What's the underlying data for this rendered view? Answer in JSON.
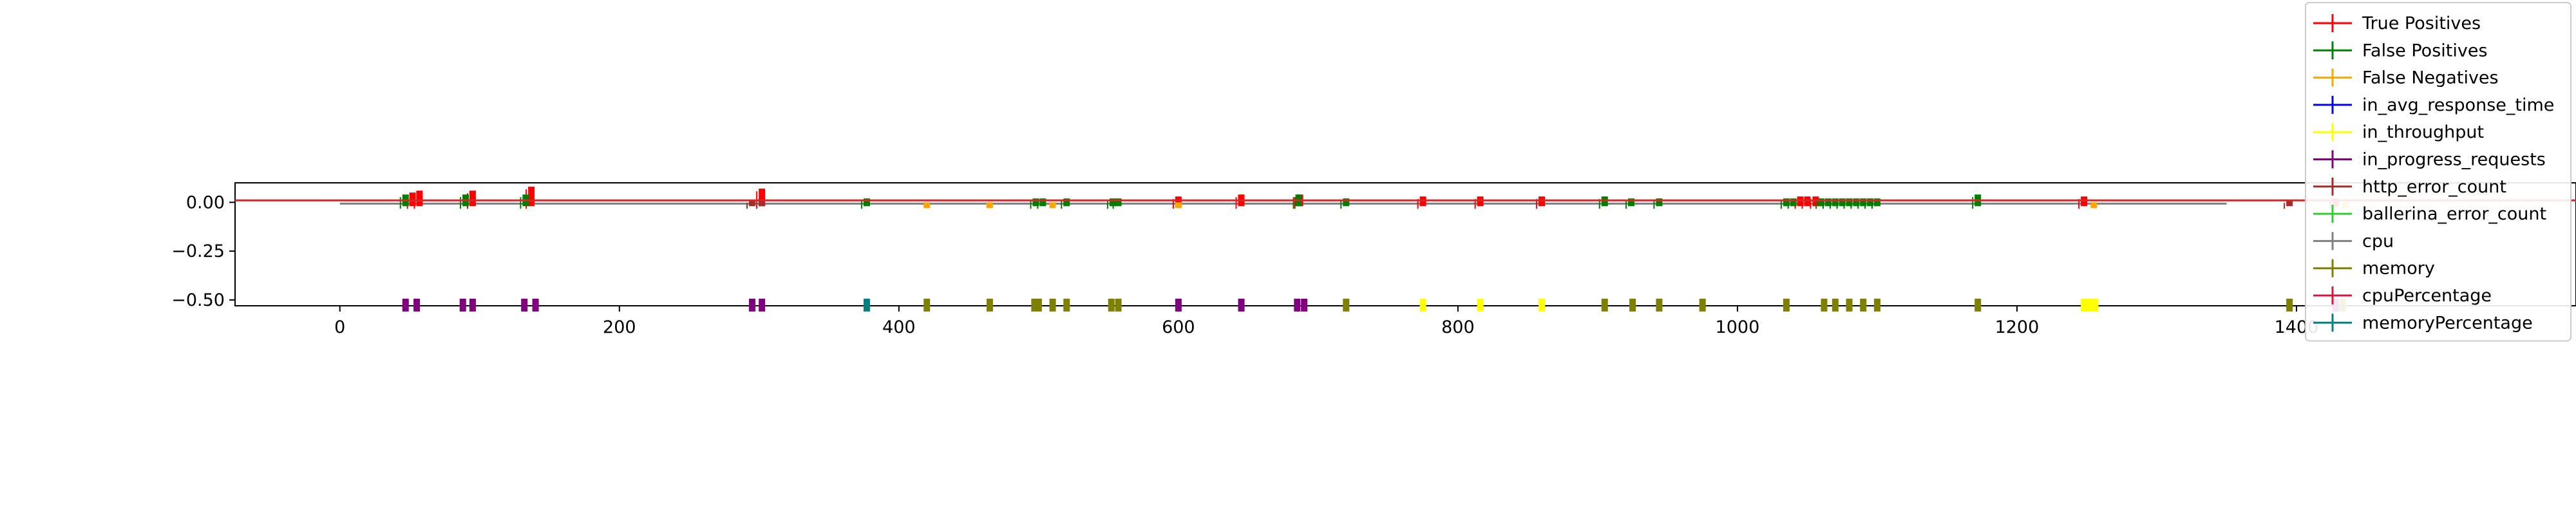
{
  "chart_data": {
    "type": "line",
    "title": "",
    "xlabel": "",
    "ylabel": "",
    "xlim": [
      -75,
      1600
    ],
    "ylim": [
      -0.53,
      0.1
    ],
    "xticks": [
      0,
      200,
      400,
      600,
      800,
      1000,
      1200,
      1400
    ],
    "xtick_labels": [
      "0",
      "200",
      "400",
      "600",
      "800",
      "1000",
      "1200",
      "1400"
    ],
    "yticks": [
      0.0,
      -0.25,
      -0.5
    ],
    "ytick_labels": [
      "0.00",
      "−0.25",
      "−0.50"
    ],
    "legend_position": "top-right (outside plot area)",
    "baseline": {
      "x_start": -75,
      "x_end": 1600,
      "value": 0.01,
      "color": "#d62728"
    },
    "series": [
      {
        "name": "True Positives",
        "color": "#ff0000",
        "x": [
          52,
          57,
          95,
          137,
          302,
          600,
          645,
          687,
          775,
          816,
          860,
          1045,
          1050,
          1056,
          1248,
          1428
        ],
        "values": [
          0.05,
          0.06,
          0.06,
          0.08,
          0.07,
          0.03,
          0.04,
          0.04,
          0.03,
          0.03,
          0.03,
          0.03,
          0.03,
          0.03,
          0.03,
          0.02
        ]
      },
      {
        "name": "False Positives",
        "color": "#008000",
        "x": [
          47,
          90,
          133,
          377,
          498,
          503,
          520,
          553,
          557,
          686,
          720,
          905,
          924,
          944,
          1035,
          1040,
          1060,
          1065,
          1070,
          1075,
          1080,
          1085,
          1090,
          1095,
          1100,
          1172
        ],
        "values": [
          0.04,
          0.04,
          0.04,
          0.02,
          0.02,
          0.02,
          0.02,
          0.02,
          0.02,
          0.04,
          0.02,
          0.03,
          0.02,
          0.02,
          0.02,
          0.02,
          0.02,
          0.02,
          0.02,
          0.02,
          0.02,
          0.02,
          0.02,
          0.02,
          0.02,
          0.04
        ]
      },
      {
        "name": "False Negatives",
        "color": "#ffa500",
        "x": [
          420,
          465,
          510,
          600,
          1255,
          1435
        ],
        "values": [
          -0.01,
          -0.01,
          -0.01,
          -0.01,
          -0.01,
          -0.01
        ]
      },
      {
        "name": "in_avg_response_time",
        "color": "#0000ff",
        "x": [],
        "values": []
      },
      {
        "name": "in_throughput",
        "color": "#ffff00",
        "x": [
          775,
          816,
          860,
          1248,
          1252,
          1256
        ],
        "values": [
          -0.5,
          -0.5,
          -0.5,
          -0.5,
          -0.5,
          -0.5
        ]
      },
      {
        "name": "in_progress_requests",
        "color": "#800080",
        "x": [
          47,
          55,
          88,
          95,
          132,
          140,
          295,
          302,
          600,
          645,
          685,
          690,
          1428
        ],
        "values": [
          -0.5,
          -0.5,
          -0.5,
          -0.5,
          -0.5,
          -0.5,
          -0.5,
          -0.5,
          -0.5,
          -0.5,
          -0.5,
          -0.5,
          -0.5
        ]
      },
      {
        "name": "http_error_count",
        "color": "#a52a2a",
        "x": [
          295,
          302,
          1395
        ],
        "values": [
          0.01,
          0.01,
          0.01
        ]
      },
      {
        "name": "ballerina_error_count",
        "color": "#32cd32",
        "x": [],
        "values": []
      },
      {
        "name": "cpu",
        "color": "#808080",
        "x": [
          0,
          100,
          400,
          600,
          1000,
          1350
        ],
        "values": [
          0.0,
          0.0,
          0.0,
          0.0,
          0.0,
          0.0
        ]
      },
      {
        "name": "memory",
        "color": "#808000",
        "x": [
          420,
          465,
          497,
          500,
          510,
          520,
          552,
          557,
          720,
          905,
          925,
          944,
          975,
          1035,
          1062,
          1070,
          1080,
          1090,
          1100,
          1172,
          1433,
          1395
        ],
        "values": [
          -0.5,
          -0.5,
          -0.5,
          -0.5,
          -0.5,
          -0.5,
          -0.5,
          -0.5,
          -0.5,
          -0.5,
          -0.5,
          -0.5,
          -0.5,
          -0.5,
          -0.5,
          -0.5,
          -0.5,
          -0.5,
          -0.5,
          -0.5,
          -0.5,
          -0.5
        ]
      },
      {
        "name": "cpuPercentage",
        "color": "#dc143c",
        "x": [
          0,
          400,
          800,
          1200,
          1600
        ],
        "values": [
          0.01,
          0.01,
          0.01,
          0.01,
          0.01
        ]
      },
      {
        "name": "memoryPercentage",
        "color": "#008080",
        "x": [
          377
        ],
        "values": [
          -0.5
        ]
      }
    ]
  }
}
